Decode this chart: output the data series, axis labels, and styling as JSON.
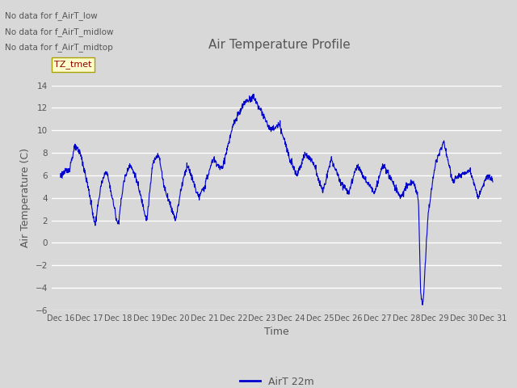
{
  "title": "Air Temperature Profile",
  "xlabel": "Time",
  "ylabel": "Air Temperature (C)",
  "legend_label": "AirT 22m",
  "ylim": [
    -6,
    14
  ],
  "yticks": [
    -6,
    -4,
    -2,
    0,
    2,
    4,
    6,
    8,
    10,
    12,
    14
  ],
  "text_annotations": [
    "No data for f_AirT_low",
    "No data for f_AirT_midlow",
    "No data for f_AirT_midtop"
  ],
  "tooltip_text": "TZ_tmet",
  "line_color": "#0000cc",
  "bg_color": "#d8d8d8",
  "plot_bg_color": "#d8d8d8",
  "grid_color": "#ffffff",
  "title_color": "#555555",
  "label_color": "#555555",
  "tick_color": "#555555",
  "start_day": 16,
  "end_day": 31,
  "num_points": 1440,
  "figsize": [
    6.4,
    4.8
  ],
  "dpi": 100
}
